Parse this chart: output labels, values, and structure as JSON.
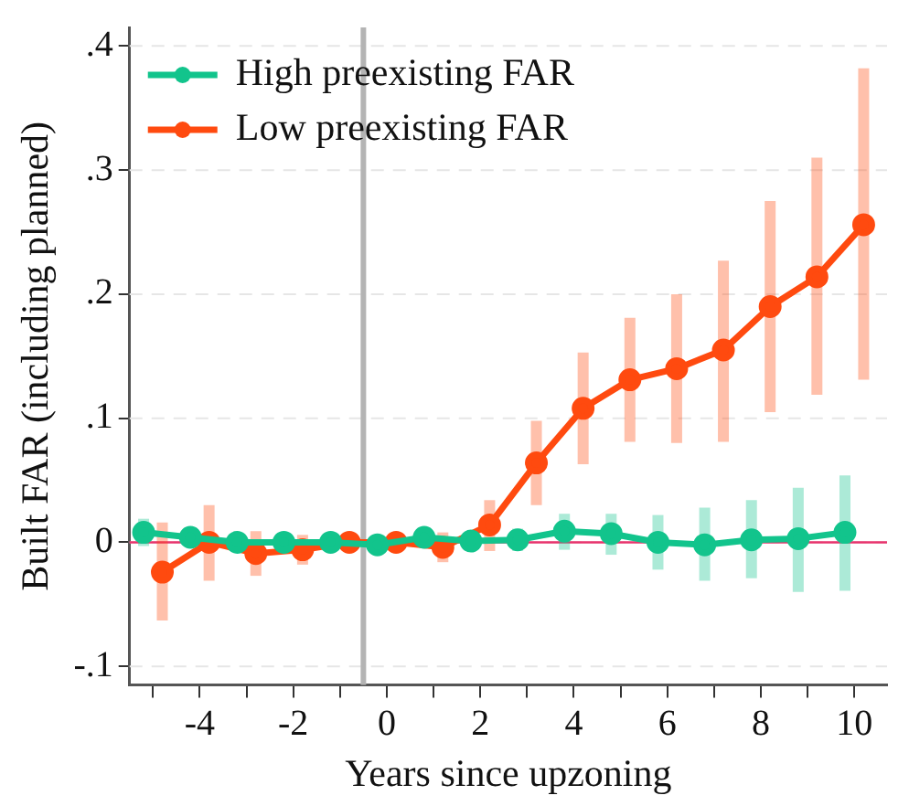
{
  "chart_data": {
    "type": "line",
    "xlabel": "Years since upzoning",
    "ylabel": "Built FAR (including planned)",
    "xlim": [
      -5.5,
      10.7
    ],
    "ylim": [
      -0.115,
      0.415
    ],
    "xticks": [
      {
        "value": -5,
        "label": null
      },
      -4,
      {
        "value": -3,
        "label": null
      },
      -2,
      {
        "value": -1,
        "label": null
      },
      0,
      {
        "value": 1,
        "label": null
      },
      2,
      {
        "value": 3,
        "label": null
      },
      4,
      {
        "value": 5,
        "label": null
      },
      6,
      {
        "value": 7,
        "label": null
      },
      8,
      {
        "value": 9,
        "label": null
      },
      10
    ],
    "yticks": [
      {
        "value": -0.1,
        "label": "-.1"
      },
      0,
      {
        "value": 0.1,
        "label": ".1"
      },
      {
        "value": 0.2,
        "label": ".2"
      },
      {
        "value": 0.3,
        "label": ".3"
      },
      {
        "value": 0.4,
        "label": ".4"
      }
    ],
    "grid": "y",
    "legend": "top left",
    "marker": "circle",
    "line_style": "solid",
    "ref_lines": [
      {
        "axis": "y",
        "value": 0,
        "color": "#e8336d"
      },
      {
        "axis": "x",
        "value": -0.5,
        "color": "#b4b4b4"
      }
    ],
    "series": [
      {
        "name": "High preexisting FAR",
        "color": "#12c48c",
        "x": [
          -5.2,
          -4.2,
          -3.2,
          -2.2,
          -1.2,
          -0.2,
          0.8,
          1.8,
          2.8,
          3.8,
          4.8,
          5.8,
          6.8,
          7.8,
          8.8,
          9.8
        ],
        "values": [
          0.008,
          0.004,
          0.0,
          0.0,
          0.0,
          -0.002,
          0.004,
          0.001,
          0.002,
          0.009,
          0.007,
          0.0,
          -0.002,
          0.002,
          0.003,
          0.008
        ],
        "errors": [
          [
            -0.003,
            0.019
          ],
          [
            -0.004,
            0.012
          ],
          [
            -0.005,
            0.005
          ],
          [
            -0.004,
            0.004
          ],
          [
            -0.004,
            0.004
          ],
          [
            -0.005,
            0.002
          ],
          [
            -0.002,
            0.01
          ],
          [
            -0.004,
            0.006
          ],
          [
            -0.007,
            0.011
          ],
          [
            -0.006,
            0.023
          ],
          [
            -0.01,
            0.023
          ],
          [
            -0.022,
            0.022
          ],
          [
            -0.031,
            0.028
          ],
          [
            -0.029,
            0.034
          ],
          [
            -0.04,
            0.044
          ],
          [
            -0.039,
            0.054
          ]
        ]
      },
      {
        "name": "Low preexisting FAR",
        "color": "#ff4a0f",
        "x": [
          -4.8,
          -3.8,
          -2.8,
          -1.8,
          -0.8,
          0.2,
          1.2,
          2.2,
          3.2,
          4.2,
          5.2,
          6.2,
          7.2,
          8.2,
          9.2,
          10.2
        ],
        "values": [
          -0.024,
          0.0,
          -0.009,
          -0.006,
          0.0,
          0.0,
          -0.004,
          0.014,
          0.064,
          0.108,
          0.131,
          0.14,
          0.155,
          0.19,
          0.214,
          0.256
        ],
        "errors": [
          [
            -0.063,
            0.016
          ],
          [
            -0.031,
            0.03
          ],
          [
            -0.027,
            0.009
          ],
          [
            -0.018,
            0.006
          ],
          [
            -0.005,
            0.005
          ],
          [
            -0.008,
            0.004
          ],
          [
            -0.016,
            0.008
          ],
          [
            -0.007,
            0.034
          ],
          [
            0.03,
            0.098
          ],
          [
            0.063,
            0.153
          ],
          [
            0.081,
            0.181
          ],
          [
            0.08,
            0.2
          ],
          [
            0.081,
            0.227
          ],
          [
            0.105,
            0.275
          ],
          [
            0.119,
            0.31
          ],
          [
            0.131,
            0.382
          ]
        ]
      }
    ]
  }
}
